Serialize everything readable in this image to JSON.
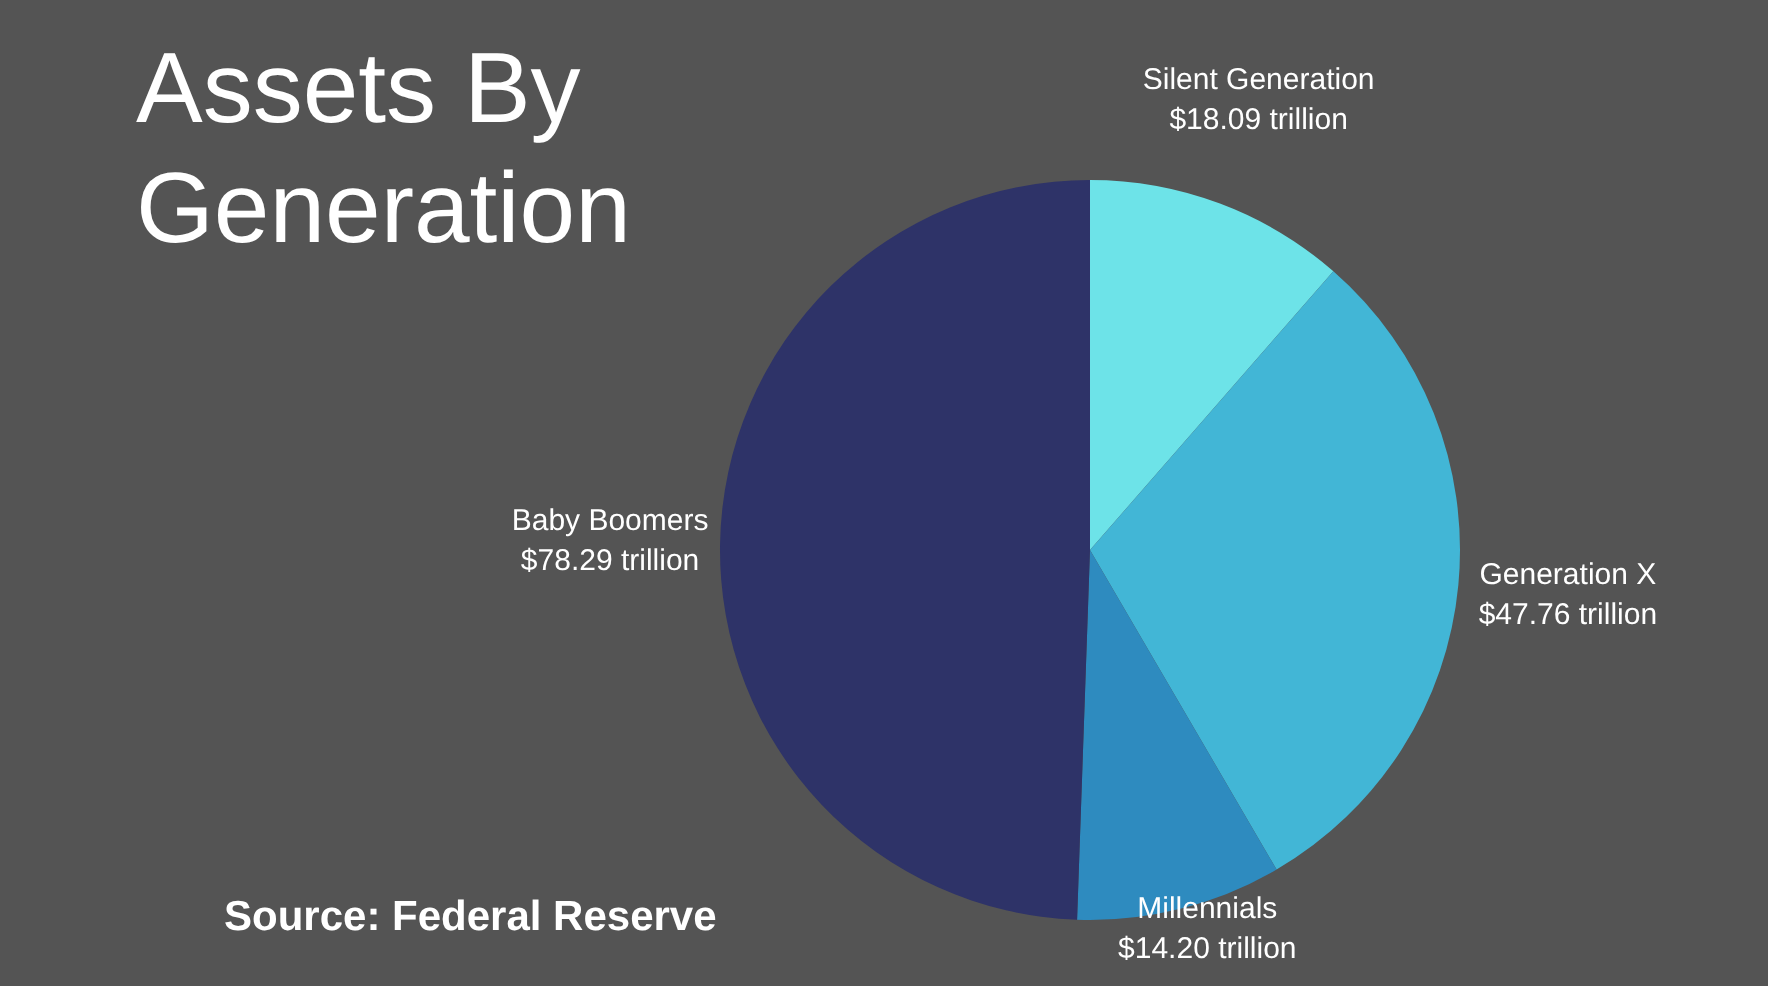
{
  "chart_data": {
    "type": "pie",
    "title": "Assets By Generation",
    "categories": [
      "Silent Generation",
      "Generation X",
      "Millennials",
      "Baby Boomers"
    ],
    "values": [
      18.09,
      47.76,
      14.2,
      78.29
    ],
    "colors": [
      "#6de3e8",
      "#42b6d6",
      "#2e8bbf",
      "#2e3368"
    ],
    "value_labels": [
      "$18.09 trillion",
      "$47.76 trillion",
      "$14.20 trillion",
      "$78.29 trillion"
    ],
    "annotations": [
      "Source: Federal Reserve"
    ]
  }
}
